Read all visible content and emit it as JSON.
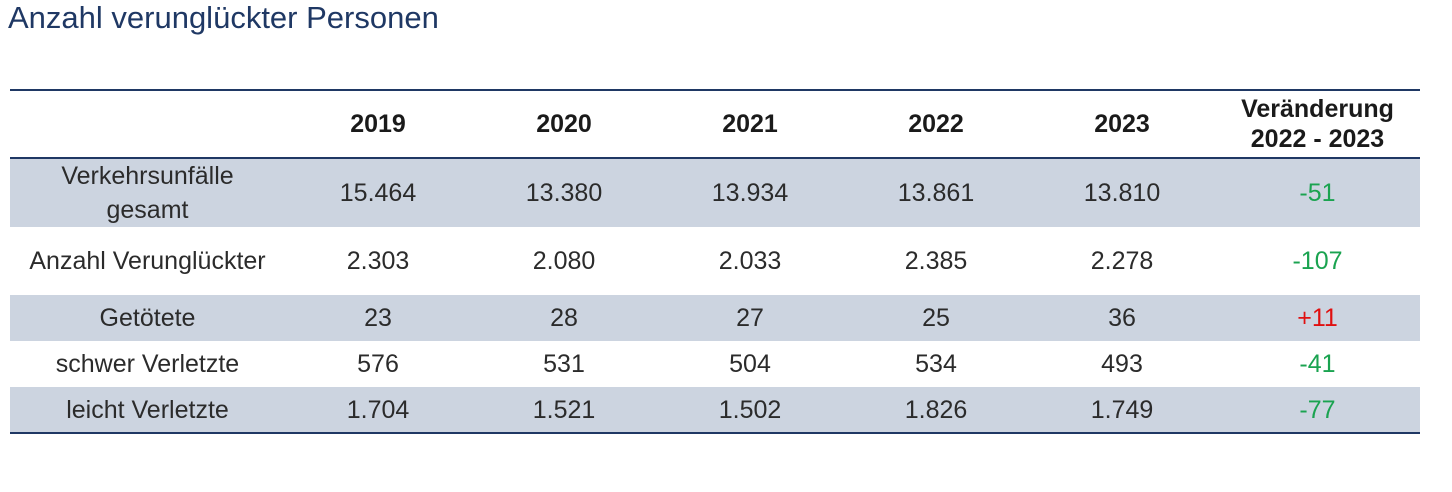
{
  "title": "Anzahl verunglückter Personen",
  "chart_data": {
    "type": "table",
    "title": "Anzahl verunglückter Personen",
    "columns": [
      "",
      "2019",
      "2020",
      "2021",
      "2022",
      "2023",
      "Veränderung 2022 - 2023"
    ],
    "change_header": {
      "line1": "Veränderung",
      "line2": "2022 - 2023"
    },
    "rows": [
      {
        "label": "Verkehrsunfälle gesamt",
        "label_line1": "Verkehrsunfälle",
        "label_line2": "gesamt",
        "values": [
          "15.464",
          "13.380",
          "13.934",
          "13.861",
          "13.810"
        ],
        "change": "-51",
        "change_direction": "down"
      },
      {
        "label": "Anzahl Verunglückter",
        "values": [
          "2.303",
          "2.080",
          "2.033",
          "2.385",
          "2.278"
        ],
        "change": "-107",
        "change_direction": "down"
      },
      {
        "label": "Getötete",
        "values": [
          "23",
          "28",
          "27",
          "25",
          "36"
        ],
        "change": "+11",
        "change_direction": "up"
      },
      {
        "label": "schwer Verletzte",
        "values": [
          "576",
          "531",
          "504",
          "534",
          "493"
        ],
        "change": "-41",
        "change_direction": "down"
      },
      {
        "label": "leicht Verletzte",
        "values": [
          "1.704",
          "1.521",
          "1.502",
          "1.826",
          "1.749"
        ],
        "change": "-77",
        "change_direction": "down"
      }
    ]
  },
  "colors": {
    "title": "#1f3864",
    "rule": "#1f3864",
    "row_shade": "#ccd4e0",
    "decrease": "#1aa350",
    "increase": "#e01010"
  }
}
